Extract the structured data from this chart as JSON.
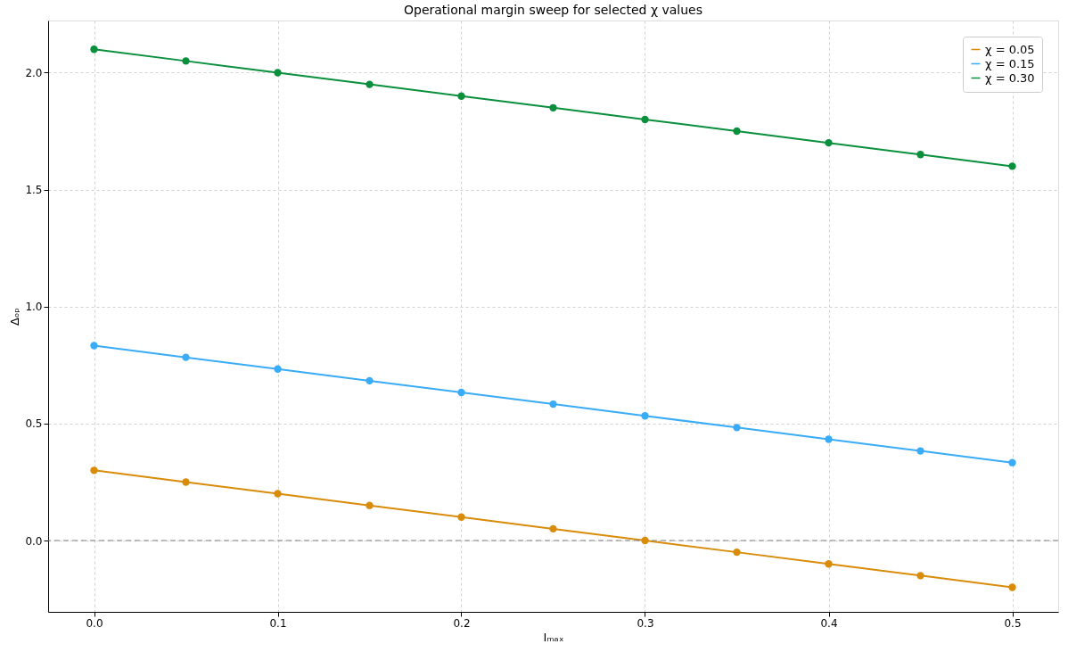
{
  "chart_data": {
    "type": "line",
    "title": "Operational margin sweep for selected χ values",
    "xlabel": "Iₘₐₓ",
    "ylabel": "Δₒₚ",
    "x": [
      0.0,
      0.05,
      0.1,
      0.15,
      0.2,
      0.25,
      0.3,
      0.35,
      0.4,
      0.45,
      0.5
    ],
    "series": [
      {
        "name": "χ = 0.05",
        "color": "#d98c0a",
        "values": [
          0.3,
          0.25,
          0.2,
          0.15,
          0.1,
          0.05,
          0.0,
          -0.05,
          -0.1,
          -0.15,
          -0.2
        ]
      },
      {
        "name": "χ = 0.15",
        "color": "#3aabf7",
        "values": [
          0.833,
          0.783,
          0.733,
          0.683,
          0.633,
          0.583,
          0.533,
          0.483,
          0.433,
          0.383,
          0.333
        ]
      },
      {
        "name": "χ = 0.30",
        "color": "#0a8f3c",
        "values": [
          2.1,
          2.05,
          2.0,
          1.95,
          1.9,
          1.85,
          1.8,
          1.75,
          1.7,
          1.65,
          1.6
        ]
      }
    ],
    "xlim": [
      -0.025,
      0.525
    ],
    "xticks": [
      {
        "value": 0,
        "label": "0.0"
      },
      0.1,
      0.2,
      0.3,
      0.4,
      0.5
    ],
    "ylim": [
      -0.305,
      2.223
    ],
    "yticks": [
      {
        "value": 0,
        "label": "0.0"
      },
      0.5,
      {
        "value": 1,
        "label": "1.0"
      },
      1.5,
      {
        "value": 2,
        "label": "2.0"
      }
    ],
    "ref_lines": [
      {
        "axis": "y",
        "value": 0.0,
        "color": "#808080",
        "line_style": "dashed"
      }
    ],
    "grid": true,
    "legend": "top right",
    "marker": "circle",
    "line_style": "solid"
  }
}
